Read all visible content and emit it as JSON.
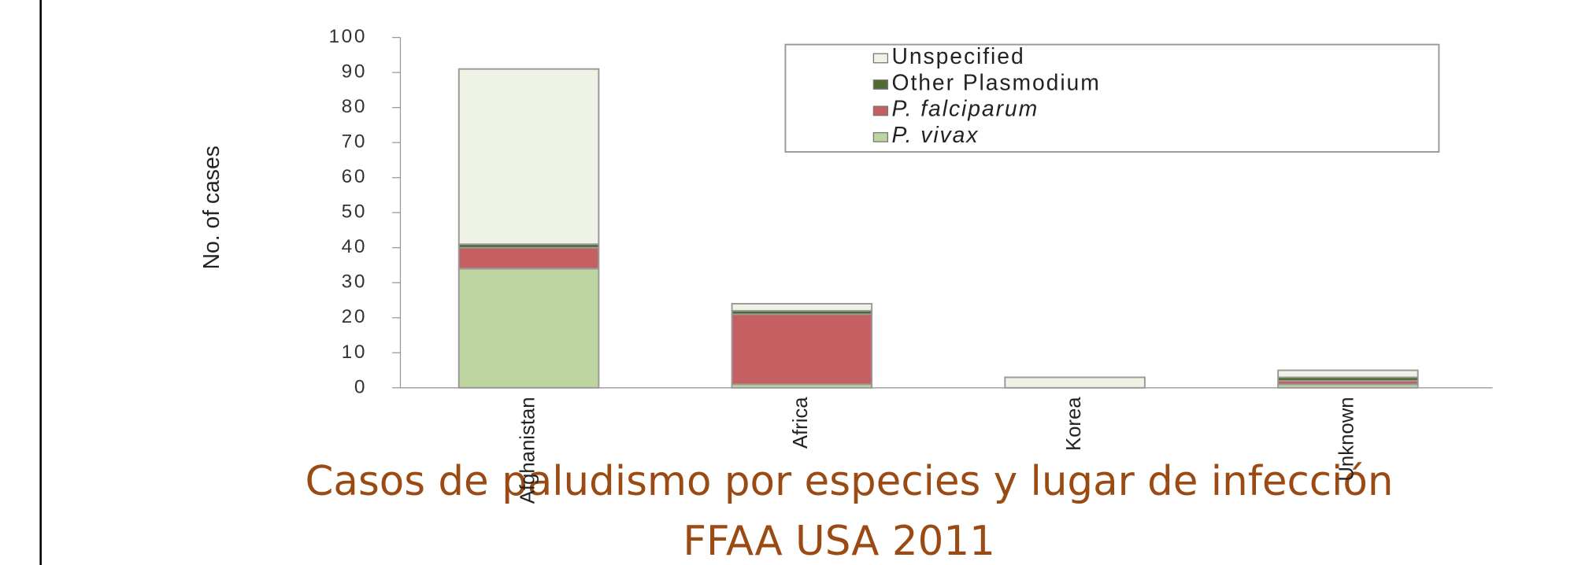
{
  "chart_data": {
    "type": "stacked_bar",
    "title": [
      "Casos de paludismo por especies y lugar de infección",
      "FFAA USA 2011"
    ],
    "y_label": "No. of cases",
    "categories": [
      "Afghanistan",
      "Africa",
      "Korea",
      "Unknown"
    ],
    "series": [
      {
        "name": "P. vivax",
        "color": "#bdd4a0",
        "values": [
          34,
          1,
          0,
          1
        ]
      },
      {
        "name": "P. falciparum",
        "color": "#c46062",
        "values": [
          6,
          20,
          0,
          1
        ]
      },
      {
        "name": "Other Plasmodium",
        "color": "#4f6b2f",
        "values": [
          1,
          1,
          0,
          1
        ]
      },
      {
        "name": "Unspecified",
        "color": "#eef3e6",
        "values": [
          50,
          2,
          3,
          2
        ]
      }
    ],
    "ylim": [
      0,
      100
    ],
    "yticks": [
      0,
      10,
      20,
      30,
      40,
      50,
      60,
      70,
      80,
      90,
      100
    ],
    "legend": "upper right"
  }
}
